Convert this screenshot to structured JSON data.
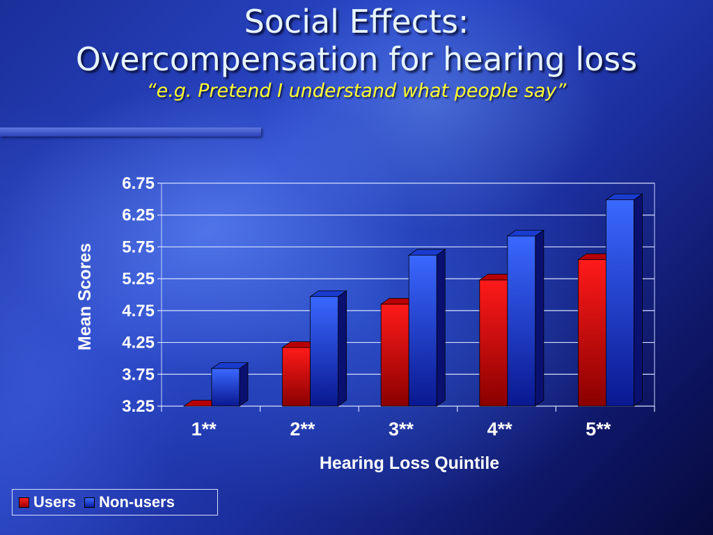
{
  "slide": {
    "title_line1": "Social Effects:",
    "title_line2": "Overcompensation for hearing loss",
    "subtitle": "“e.g. Pretend I understand what people say”"
  },
  "legend": {
    "items": [
      {
        "label": "Users",
        "color": "#e01010"
      },
      {
        "label": "Non-users",
        "color": "#2448e0"
      }
    ]
  },
  "chart_data": {
    "type": "bar",
    "title": "",
    "xlabel": "Hearing Loss Quintile",
    "ylabel": "Mean Scores",
    "categories": [
      "1**",
      "2**",
      "3**",
      "4**",
      "5**"
    ],
    "series": [
      {
        "name": "Users",
        "values": [
          3.25,
          4.17,
          4.85,
          5.23,
          5.55
        ],
        "color": "#e01010"
      },
      {
        "name": "Non-users",
        "values": [
          3.84,
          4.97,
          5.62,
          5.92,
          6.49
        ],
        "color": "#2448e0"
      }
    ],
    "ylim": [
      3.25,
      6.75
    ],
    "yticks": [
      "3.25",
      "3.75",
      "4.25",
      "4.75",
      "5.25",
      "5.75",
      "6.25",
      "6.75"
    ],
    "grid": true,
    "legend_position": "bottom-left"
  }
}
